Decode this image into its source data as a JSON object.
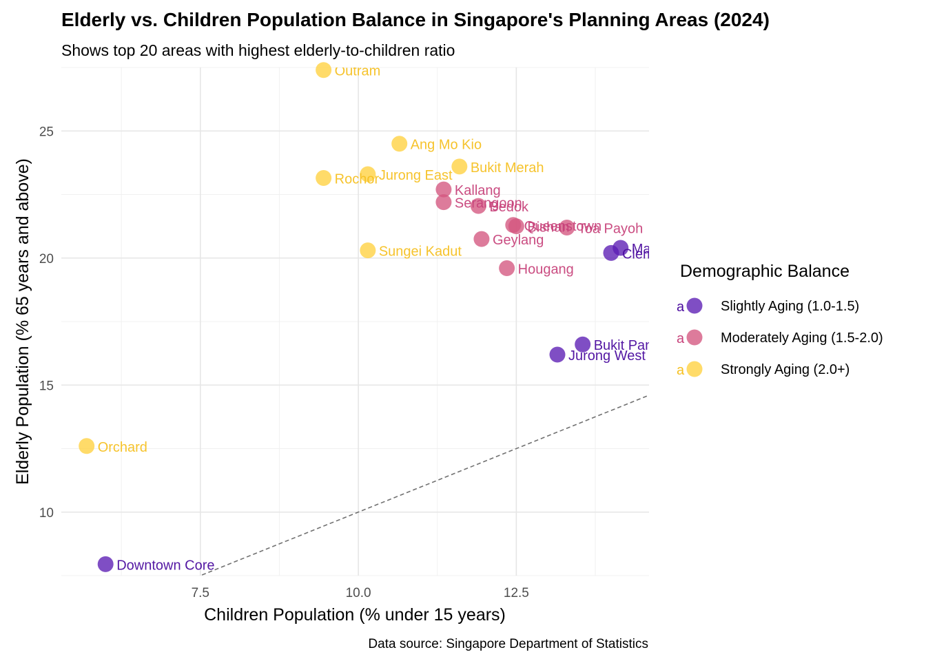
{
  "chart_data": {
    "type": "scatter",
    "title": "Elderly vs. Children Population Balance in Singapore's Planning Areas (2024)",
    "subtitle": "Shows top 20 areas with highest elderly-to-children ratio",
    "xlabel": "Children Population (% under 15 years)",
    "ylabel": "Elderly Population (% 65 years and above)",
    "caption": "Data source: Singapore Department of Statistics",
    "xlim": [
      5.3,
      14.6
    ],
    "ylim": [
      7.5,
      27.5
    ],
    "x_ticks": [
      7.5,
      10.0,
      12.5
    ],
    "x_tick_labels": [
      "7.5",
      "10.0",
      "12.5"
    ],
    "y_ticks": [
      10,
      15,
      20,
      25
    ],
    "y_tick_labels": [
      "10",
      "15",
      "20",
      "25"
    ],
    "grid": true,
    "reference_line": {
      "style": "dashed",
      "slope": 1,
      "intercept": 0
    },
    "legend": {
      "title": "Demographic Balance",
      "position": "right",
      "key_glyph_text": "a",
      "entries": [
        {
          "key": "slight",
          "label": "Slightly Aging (1.0-1.5)",
          "color": "#5B1CB4"
        },
        {
          "key": "moderate",
          "label": "Moderately Aging (1.5-2.0)",
          "color": "#D4567F"
        },
        {
          "key": "strong",
          "label": "Strongly Aging (2.0+)",
          "color": "#FFD13F"
        }
      ]
    },
    "label_colors": {
      "slight": "#4A0B9E",
      "moderate": "#C7427A",
      "strong": "#F6C021"
    },
    "points": [
      {
        "name": "Outram",
        "x": 9.45,
        "y": 27.4,
        "group": "strong"
      },
      {
        "name": "Ang Mo Kio",
        "x": 10.65,
        "y": 24.5,
        "group": "strong"
      },
      {
        "name": "Bukit Merah",
        "x": 11.6,
        "y": 23.6,
        "group": "strong"
      },
      {
        "name": "Jurong East",
        "x": 10.15,
        "y": 23.3,
        "group": "strong"
      },
      {
        "name": "Rochor",
        "x": 9.45,
        "y": 23.15,
        "group": "strong"
      },
      {
        "name": "Sungei Kadut",
        "x": 10.15,
        "y": 20.3,
        "group": "strong"
      },
      {
        "name": "Orchard",
        "x": 5.7,
        "y": 12.6,
        "group": "strong"
      },
      {
        "name": "Kallang",
        "x": 11.35,
        "y": 22.7,
        "group": "moderate"
      },
      {
        "name": "Serangoon",
        "x": 11.35,
        "y": 22.2,
        "group": "moderate"
      },
      {
        "name": "Bedok",
        "x": 11.9,
        "y": 22.05,
        "group": "moderate"
      },
      {
        "name": "Queenstown",
        "x": 12.45,
        "y": 21.3,
        "group": "moderate"
      },
      {
        "name": "Bishan",
        "x": 12.5,
        "y": 21.25,
        "group": "moderate"
      },
      {
        "name": "Toa Payoh",
        "x": 13.3,
        "y": 21.2,
        "group": "moderate"
      },
      {
        "name": "Geylang",
        "x": 11.95,
        "y": 20.75,
        "group": "moderate"
      },
      {
        "name": "Hougang",
        "x": 12.35,
        "y": 19.6,
        "group": "moderate"
      },
      {
        "name": "Marine Parade",
        "x": 14.15,
        "y": 20.4,
        "group": "slight"
      },
      {
        "name": "Clementi",
        "x": 14.0,
        "y": 20.2,
        "group": "slight"
      },
      {
        "name": "Bukit Panjang",
        "x": 13.55,
        "y": 16.6,
        "group": "slight"
      },
      {
        "name": "Jurong West",
        "x": 13.15,
        "y": 16.2,
        "group": "slight"
      },
      {
        "name": "Downtown Core",
        "x": 6.0,
        "y": 7.95,
        "group": "slight"
      }
    ]
  }
}
